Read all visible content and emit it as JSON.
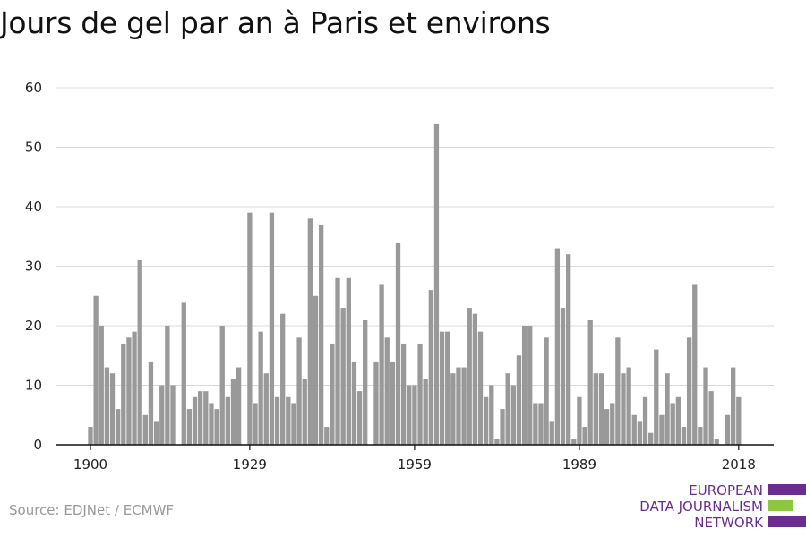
{
  "title": "Jours de gel par an à Paris et environs",
  "source": "Source: EDJNet / ECMWF",
  "logo": {
    "lines": [
      "EUROPEAN",
      "DATA JOURNALISM",
      "NETWORK"
    ],
    "colors": {
      "purple": "#6b2c91",
      "green": "#8dc63f"
    }
  },
  "colors": {
    "bar": "#999999",
    "grid": "#d9d9d9",
    "axis": "#111111"
  },
  "chart_data": {
    "type": "bar",
    "title": "Jours de gel par an à Paris et environs",
    "xlabel": "",
    "ylabel": "",
    "ylim": [
      0,
      60
    ],
    "yticks": [
      0,
      10,
      20,
      30,
      40,
      50,
      60
    ],
    "xticks": [
      1900,
      1929,
      1959,
      1989,
      2018
    ],
    "grid": true,
    "categories": [
      1900,
      1901,
      1902,
      1903,
      1904,
      1905,
      1906,
      1907,
      1908,
      1909,
      1910,
      1911,
      1912,
      1913,
      1914,
      1915,
      1916,
      1917,
      1918,
      1919,
      1920,
      1921,
      1922,
      1923,
      1924,
      1925,
      1926,
      1927,
      1928,
      1929,
      1930,
      1931,
      1932,
      1933,
      1934,
      1935,
      1936,
      1937,
      1938,
      1939,
      1940,
      1941,
      1942,
      1943,
      1944,
      1945,
      1946,
      1947,
      1948,
      1949,
      1950,
      1951,
      1952,
      1953,
      1954,
      1955,
      1956,
      1957,
      1958,
      1959,
      1960,
      1961,
      1962,
      1963,
      1964,
      1965,
      1966,
      1967,
      1968,
      1969,
      1970,
      1971,
      1972,
      1973,
      1974,
      1975,
      1976,
      1977,
      1978,
      1979,
      1980,
      1981,
      1982,
      1983,
      1984,
      1985,
      1986,
      1987,
      1988,
      1989,
      1990,
      1991,
      1992,
      1993,
      1994,
      1995,
      1996,
      1997,
      1998,
      1999,
      2000,
      2001,
      2002,
      2003,
      2004,
      2005,
      2006,
      2007,
      2008,
      2009,
      2010,
      2011,
      2012,
      2013,
      2014,
      2015,
      2016,
      2017,
      2018
    ],
    "values": [
      3,
      25,
      20,
      13,
      12,
      6,
      17,
      18,
      19,
      31,
      5,
      14,
      4,
      10,
      20,
      10,
      0,
      24,
      6,
      8,
      9,
      9,
      7,
      6,
      20,
      8,
      11,
      13,
      0,
      39,
      7,
      19,
      12,
      39,
      8,
      22,
      8,
      7,
      18,
      11,
      38,
      25,
      37,
      3,
      17,
      28,
      23,
      28,
      14,
      9,
      21,
      0,
      14,
      27,
      18,
      14,
      34,
      17,
      10,
      10,
      17,
      11,
      26,
      54,
      19,
      19,
      12,
      13,
      13,
      23,
      22,
      19,
      8,
      10,
      1,
      6,
      12,
      10,
      15,
      20,
      20,
      7,
      7,
      18,
      4,
      33,
      23,
      32,
      1,
      8,
      3,
      21,
      12,
      12,
      6,
      7,
      18,
      12,
      13,
      5,
      4,
      8,
      2,
      16,
      5,
      12,
      7,
      8,
      3,
      18,
      27,
      3,
      13,
      9,
      1,
      0,
      5,
      13,
      8
    ]
  }
}
